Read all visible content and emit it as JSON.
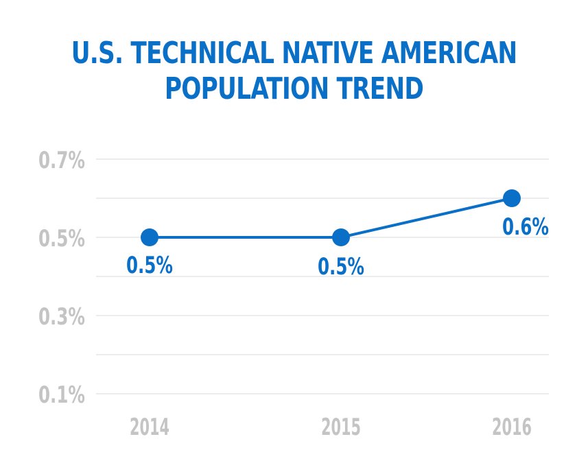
{
  "chart_data": {
    "type": "line",
    "title_lines": [
      "U.S. TECHNICAL NATIVE AMERICAN",
      "POPULATION TREND"
    ],
    "categories": [
      "2014",
      "2015",
      "2016"
    ],
    "series": [
      {
        "values": [
          0.5,
          0.5,
          0.6
        ],
        "data_labels": [
          "0.5%",
          "0.5%",
          "0.6%"
        ]
      }
    ],
    "y_ticks": [
      {
        "value": 0.7,
        "label": "0.7%"
      },
      {
        "value": 0.5,
        "label": "0.5%"
      },
      {
        "value": 0.3,
        "label": "0.3%"
      },
      {
        "value": 0.1,
        "label": "0.1%"
      }
    ],
    "gridlines": [
      0.1,
      0.2,
      0.3,
      0.4,
      0.5,
      0.6,
      0.7
    ],
    "ylim": [
      0.1,
      0.7
    ],
    "grid": true,
    "legend": "none",
    "colors": {
      "line": "#0a6fc7",
      "grid": "#d9d9d9",
      "tick_text": "#c4c4c4",
      "title": "#0a6fc7"
    }
  }
}
